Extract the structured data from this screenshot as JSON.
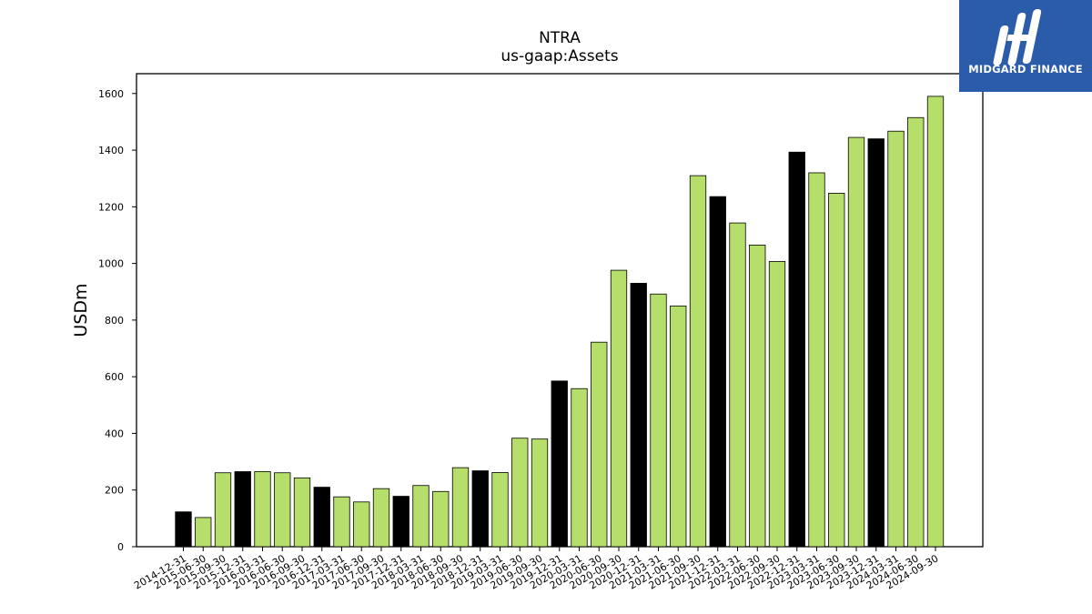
{
  "title": "NTRA",
  "subtitle": "us-gaap:Assets",
  "logo": {
    "text": "MIDGARD FINANCE",
    "background": "#2a5caa"
  },
  "colors": {
    "highlight": "#000000",
    "normal": "#b5de6b",
    "edge": "#000000"
  },
  "chart_data": {
    "type": "bar",
    "ylabel": "USDm",
    "xlabel": "",
    "ylim": [
      0,
      1670
    ],
    "yticks": [
      0,
      200,
      400,
      600,
      800,
      1000,
      1200,
      1400,
      1600
    ],
    "grid": false,
    "categories": [
      "2014-12-31",
      "2015-06-30",
      "2015-09-30",
      "2015-12-31",
      "2016-03-31",
      "2016-06-30",
      "2016-09-30",
      "2016-12-31",
      "2017-03-31",
      "2017-06-30",
      "2017-09-30",
      "2017-12-31",
      "2018-03-31",
      "2018-06-30",
      "2018-09-30",
      "2018-12-31",
      "2019-03-31",
      "2019-06-30",
      "2019-09-30",
      "2019-12-31",
      "2020-03-31",
      "2020-06-30",
      "2020-09-30",
      "2020-12-31",
      "2021-03-31",
      "2021-06-30",
      "2021-09-30",
      "2021-12-31",
      "2022-03-31",
      "2022-06-30",
      "2022-09-30",
      "2022-12-31",
      "2023-03-31",
      "2023-06-30",
      "2023-09-30",
      "2023-12-31",
      "2024-03-31",
      "2024-06-30",
      "2024-09-30"
    ],
    "values": [
      123,
      103,
      261,
      265,
      265,
      261,
      243,
      210,
      176,
      158,
      205,
      178,
      216,
      195,
      279,
      268,
      262,
      383,
      380,
      585,
      558,
      722,
      976,
      930,
      892,
      850,
      1310,
      1236,
      1143,
      1065,
      1007,
      1393,
      1320,
      1248,
      1445,
      1440,
      1467,
      1515,
      1590
    ],
    "highlight": [
      true,
      false,
      false,
      true,
      false,
      false,
      false,
      true,
      false,
      false,
      false,
      true,
      false,
      false,
      false,
      true,
      false,
      false,
      false,
      true,
      false,
      false,
      false,
      true,
      false,
      false,
      false,
      true,
      false,
      false,
      false,
      true,
      false,
      false,
      false,
      true,
      false,
      false,
      false
    ]
  }
}
